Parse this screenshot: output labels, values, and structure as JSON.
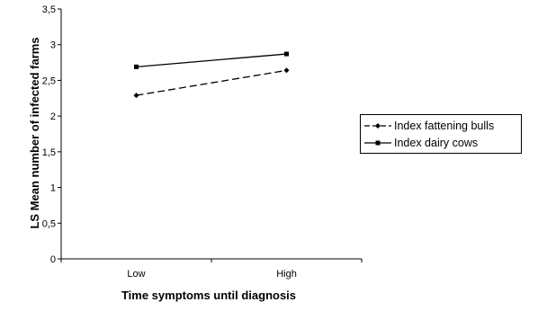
{
  "chart_data": {
    "type": "line",
    "xlabel": "Time symptoms until diagnosis",
    "ylabel": "LS Mean number of infected farms",
    "categories": [
      "Low",
      "High"
    ],
    "ylim": [
      0,
      3.5
    ],
    "yticks": [
      "0",
      "0,5",
      "1",
      "1,5",
      "2",
      "2,5",
      "3",
      "3,5"
    ],
    "series": [
      {
        "name": "Index fattening bulls",
        "values": [
          2.29,
          2.64
        ],
        "line": "dashed",
        "marker": "diamond",
        "color": "#000000"
      },
      {
        "name": "Index dairy cows",
        "values": [
          2.69,
          2.87
        ],
        "line": "solid",
        "marker": "square",
        "color": "#000000"
      }
    ],
    "grid": false,
    "legend": "right"
  }
}
